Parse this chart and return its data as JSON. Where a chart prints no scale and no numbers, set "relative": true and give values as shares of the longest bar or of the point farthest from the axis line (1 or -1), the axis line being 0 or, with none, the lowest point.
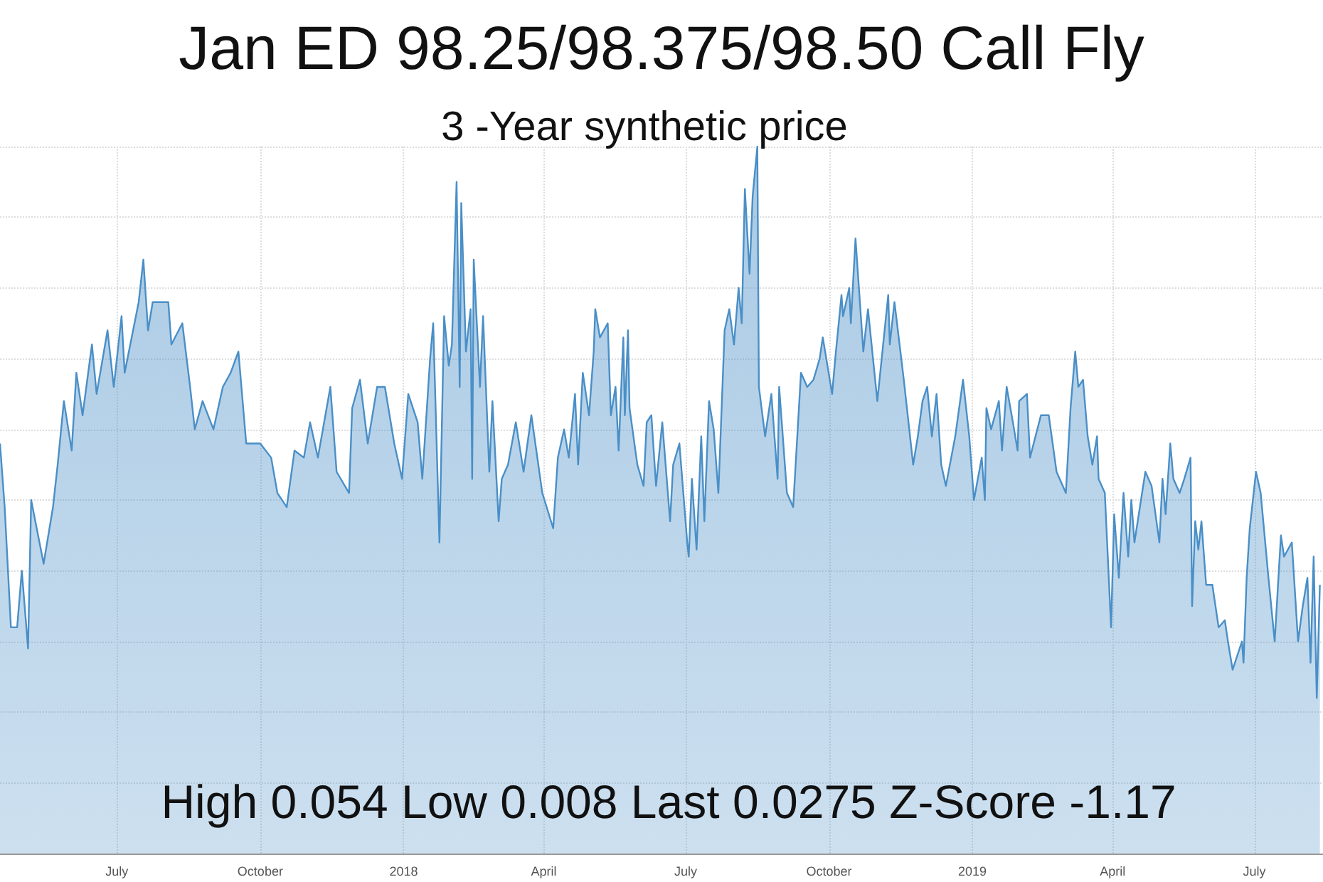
{
  "chart_data": {
    "type": "area",
    "title": "Jan ED 98.25/98.375/98.50 Call Fly",
    "subtitle": "3 -Year synthetic price",
    "annotations": [
      "High 0.054 Low 0.008 Last 0.0275 Z-Score -1.17"
    ],
    "relative": true,
    "grid": true,
    "xlim": [
      "2017-04-17",
      "2019-08-14"
    ],
    "xticks": [
      {
        "value": "2017-07",
        "label": "July"
      },
      {
        "value": "2017-10",
        "label": "October"
      },
      {
        "value": "2018-01",
        "label": "2018"
      },
      {
        "value": "2018-04",
        "label": "April"
      },
      {
        "value": "2018-07",
        "label": "July"
      },
      {
        "value": "2018-10",
        "label": "October"
      },
      {
        "value": "2019-01",
        "label": "2019"
      },
      {
        "value": "2019-04",
        "label": "April"
      },
      {
        "value": "2019-07",
        "label": "July"
      }
    ],
    "x": [
      "2017-04-17",
      "2017-04-20",
      "2017-04-24",
      "2017-04-28",
      "2017-05-01",
      "2017-05-05",
      "2017-05-07",
      "2017-05-15",
      "2017-05-21",
      "2017-05-24",
      "2017-05-28",
      "2017-06-02",
      "2017-06-05",
      "2017-06-09",
      "2017-06-15",
      "2017-06-18",
      "2017-06-25",
      "2017-06-29",
      "2017-07-04",
      "2017-07-06",
      "2017-07-15",
      "2017-07-18",
      "2017-07-21",
      "2017-07-24",
      "2017-08-03",
      "2017-08-05",
      "2017-08-12",
      "2017-08-17",
      "2017-08-20",
      "2017-08-25",
      "2017-09-01",
      "2017-09-07",
      "2017-09-12",
      "2017-09-17",
      "2017-09-22",
      "2017-10-01",
      "2017-10-08",
      "2017-10-12",
      "2017-10-18",
      "2017-10-23",
      "2017-10-29",
      "2017-11-02",
      "2017-11-07",
      "2017-11-15",
      "2017-11-19",
      "2017-11-27",
      "2017-11-29",
      "2017-12-04",
      "2017-12-09",
      "2017-12-15",
      "2017-12-20",
      "2017-12-26",
      "2017-12-31",
      "2018-01-04",
      "2018-01-10",
      "2018-01-13",
      "2018-01-18",
      "2018-01-20",
      "2018-01-24",
      "2018-01-27",
      "2018-01-30",
      "2018-02-01",
      "2018-02-04",
      "2018-02-06",
      "2018-02-07",
      "2018-02-10",
      "2018-02-13",
      "2018-02-14",
      "2018-02-15",
      "2018-02-19",
      "2018-02-21",
      "2018-02-25",
      "2018-02-27",
      "2018-03-03",
      "2018-03-05",
      "2018-03-09",
      "2018-03-14",
      "2018-03-19",
      "2018-03-24",
      "2018-03-31",
      "2018-04-07",
      "2018-04-10",
      "2018-04-14",
      "2018-04-17",
      "2018-04-21",
      "2018-04-23",
      "2018-04-26",
      "2018-04-30",
      "2018-05-03",
      "2018-05-04",
      "2018-05-07",
      "2018-05-12",
      "2018-05-14",
      "2018-05-17",
      "2018-05-19",
      "2018-05-22",
      "2018-05-23",
      "2018-05-25",
      "2018-05-26",
      "2018-05-31",
      "2018-06-04",
      "2018-06-06",
      "2018-06-09",
      "2018-06-12",
      "2018-06-16",
      "2018-06-21",
      "2018-06-23",
      "2018-06-27",
      "2018-07-02",
      "2018-07-03",
      "2018-07-05",
      "2018-07-08",
      "2018-07-11",
      "2018-07-13",
      "2018-07-16",
      "2018-07-19",
      "2018-07-22",
      "2018-07-26",
      "2018-07-29",
      "2018-08-01",
      "2018-08-04",
      "2018-08-06",
      "2018-08-08",
      "2018-08-11",
      "2018-08-13",
      "2018-08-16",
      "2018-08-17",
      "2018-08-21",
      "2018-08-25",
      "2018-08-29",
      "2018-08-30",
      "2018-09-04",
      "2018-09-08",
      "2018-09-13",
      "2018-09-17",
      "2018-09-21",
      "2018-09-25",
      "2018-09-27",
      "2018-10-03",
      "2018-10-05",
      "2018-10-09",
      "2018-10-10",
      "2018-10-14",
      "2018-10-15",
      "2018-10-18",
      "2018-10-23",
      "2018-10-26",
      "2018-11-01",
      "2018-11-08",
      "2018-11-09",
      "2018-11-12",
      "2018-11-18",
      "2018-11-24",
      "2018-11-27",
      "2018-11-30",
      "2018-12-03",
      "2018-12-06",
      "2018-12-09",
      "2018-12-12",
      "2018-12-15",
      "2018-12-21",
      "2018-12-26",
      "2018-12-30",
      "2019-01-02",
      "2019-01-07",
      "2019-01-09",
      "2019-01-10",
      "2019-01-13",
      "2019-01-18",
      "2019-01-20",
      "2019-01-23",
      "2019-01-27",
      "2019-01-30",
      "2019-01-31",
      "2019-02-05",
      "2019-02-07",
      "2019-02-14",
      "2019-02-19",
      "2019-02-24",
      "2019-03-02",
      "2019-03-05",
      "2019-03-08",
      "2019-03-10",
      "2019-03-13",
      "2019-03-16",
      "2019-03-19",
      "2019-03-22",
      "2019-03-23",
      "2019-03-27",
      "2019-03-31",
      "2019-04-02",
      "2019-04-05",
      "2019-04-08",
      "2019-04-11",
      "2019-04-13",
      "2019-04-15",
      "2019-04-22",
      "2019-04-26",
      "2019-05-01",
      "2019-05-03",
      "2019-05-05",
      "2019-05-08",
      "2019-05-10",
      "2019-05-14",
      "2019-05-17",
      "2019-05-21",
      "2019-05-22",
      "2019-05-24",
      "2019-05-26",
      "2019-05-28",
      "2019-05-31",
      "2019-06-04",
      "2019-06-08",
      "2019-06-12",
      "2019-06-14",
      "2019-06-17",
      "2019-06-20",
      "2019-06-23",
      "2019-06-24",
      "2019-06-26",
      "2019-06-28",
      "2019-07-02",
      "2019-07-05",
      "2019-07-10",
      "2019-07-14",
      "2019-07-18",
      "2019-07-20",
      "2019-07-25",
      "2019-07-29",
      "2019-08-01",
      "2019-08-04",
      "2019-08-06",
      "2019-08-08",
      "2019-08-10",
      "2019-08-12"
    ],
    "series": [
      {
        "color": "#4a8fc7",
        "values": [
          0.58,
          0.49,
          0.32,
          0.32,
          0.4,
          0.29,
          0.5,
          0.41,
          0.49,
          0.55,
          0.64,
          0.57,
          0.68,
          0.62,
          0.72,
          0.65,
          0.74,
          0.66,
          0.76,
          0.68,
          0.78,
          0.84,
          0.74,
          0.78,
          0.78,
          0.72,
          0.75,
          0.66,
          0.6,
          0.64,
          0.6,
          0.66,
          0.68,
          0.71,
          0.58,
          0.58,
          0.56,
          0.51,
          0.49,
          0.57,
          0.56,
          0.61,
          0.56,
          0.66,
          0.54,
          0.51,
          0.63,
          0.67,
          0.58,
          0.66,
          0.66,
          0.58,
          0.53,
          0.65,
          0.61,
          0.53,
          0.7,
          0.75,
          0.44,
          0.76,
          0.69,
          0.72,
          0.95,
          0.66,
          0.92,
          0.71,
          0.77,
          0.53,
          0.84,
          0.66,
          0.76,
          0.54,
          0.64,
          0.47,
          0.53,
          0.55,
          0.61,
          0.54,
          0.62,
          0.51,
          0.46,
          0.56,
          0.6,
          0.56,
          0.65,
          0.55,
          0.68,
          0.62,
          0.71,
          0.77,
          0.73,
          0.75,
          0.62,
          0.66,
          0.57,
          0.73,
          0.62,
          0.74,
          0.63,
          0.55,
          0.52,
          0.61,
          0.62,
          0.52,
          0.61,
          0.47,
          0.55,
          0.58,
          0.44,
          0.42,
          0.53,
          0.43,
          0.59,
          0.47,
          0.64,
          0.6,
          0.51,
          0.74,
          0.77,
          0.72,
          0.8,
          0.75,
          0.94,
          0.82,
          0.93,
          1,
          0.66,
          0.59,
          0.65,
          0.53,
          0.66,
          0.51,
          0.49,
          0.68,
          0.66,
          0.67,
          0.7,
          0.73,
          0.65,
          0.7,
          0.79,
          0.76,
          0.8,
          0.75,
          0.87,
          0.71,
          0.77,
          0.64,
          0.79,
          0.72,
          0.78,
          0.67,
          0.55,
          0.59,
          0.64,
          0.66,
          0.59,
          0.65,
          0.55,
          0.52,
          0.59,
          0.67,
          0.59,
          0.5,
          0.56,
          0.5,
          0.63,
          0.6,
          0.64,
          0.57,
          0.66,
          0.61,
          0.57,
          0.64,
          0.65,
          0.56,
          0.62,
          0.62,
          0.54,
          0.51,
          0.63,
          0.71,
          0.66,
          0.67,
          0.59,
          0.55,
          0.59,
          0.53,
          0.51,
          0.32,
          0.48,
          0.39,
          0.51,
          0.42,
          0.5,
          0.44,
          0.54,
          0.52,
          0.44,
          0.53,
          0.48,
          0.58,
          0.53,
          0.51,
          0.53,
          0.56,
          0.35,
          0.47,
          0.43,
          0.47,
          0.38,
          0.38,
          0.32,
          0.33,
          0.3,
          0.26,
          0.28,
          0.3,
          0.27,
          0.39,
          0.46,
          0.54,
          0.51,
          0.39,
          0.3,
          0.45,
          0.42,
          0.44,
          0.3,
          0.35,
          0.39,
          0.27,
          0.42,
          0.22,
          0.38
        ]
      }
    ]
  }
}
